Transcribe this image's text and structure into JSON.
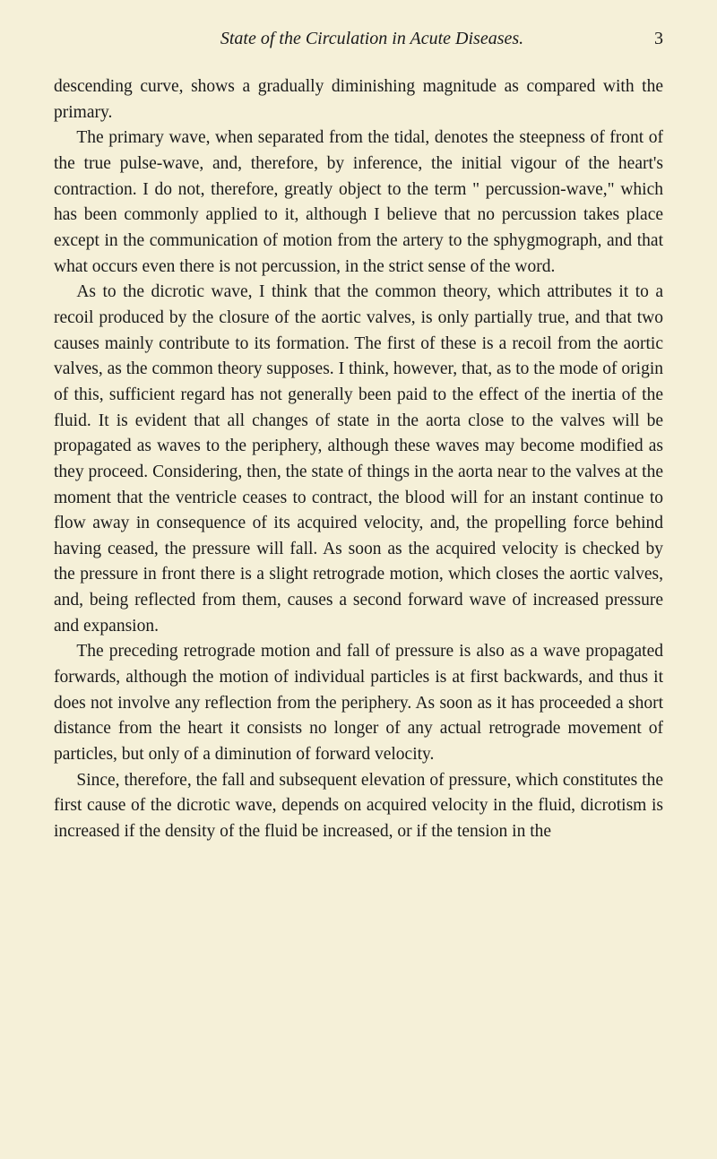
{
  "header": {
    "running_title": "State of the Circulation in Acute Diseases.",
    "page_number": "3"
  },
  "paragraphs": {
    "p1": "descending curve, shows a gradually diminishing magnitude as compared with the primary.",
    "p2": "The primary wave, when separated from the tidal, denotes the steepness of front of the true pulse-wave, and, therefore, by inference, the initial vigour of the heart's contraction. I do not, therefore, greatly object to the term \" percussion-wave,\" which has been commonly applied to it, although I believe that no percussion takes place except in the communication of motion from the artery to the sphygmograph, and that what occurs even there is not percussion, in the strict sense of the word.",
    "p3": "As to the dicrotic wave, I think that the common theory, which attributes it to a recoil produced by the closure of the aortic valves, is only partially true, and that two causes mainly contribute to its formation. The first of these is a recoil from the aortic valves, as the common theory supposes. I think, however, that, as to the mode of origin of this, sufficient regard has not generally been paid to the effect of the inertia of the fluid. It is evident that all changes of state in the aorta close to the valves will be propagated as waves to the periphery, although these waves may become modified as they proceed. Considering, then, the state of things in the aorta near to the valves at the moment that the ventricle ceases to contract, the blood will for an instant continue to flow away in consequence of its acquired velocity, and, the propelling force behind having ceased, the pressure will fall. As soon as the acquired velocity is checked by the pressure in front there is a slight retrograde motion, which closes the aortic valves, and, being reflected from them, causes a second forward wave of increased pressure and expansion.",
    "p4": "The preceding retrograde motion and fall of pressure is also as a wave propagated forwards, although the motion of individual particles is at first backwards, and thus it does not involve any reflection from the periphery. As soon as it has proceeded a short distance from the heart it consists no longer of any actual retrograde movement of particles, but only of a diminution of forward velocity.",
    "p5": "Since, therefore, the fall and subsequent elevation of pressure, which constitutes the first cause of the dicrotic wave, depends on acquired velocity in the fluid, dicrotism is increased if the density of the fluid be increased, or if the tension in the"
  }
}
